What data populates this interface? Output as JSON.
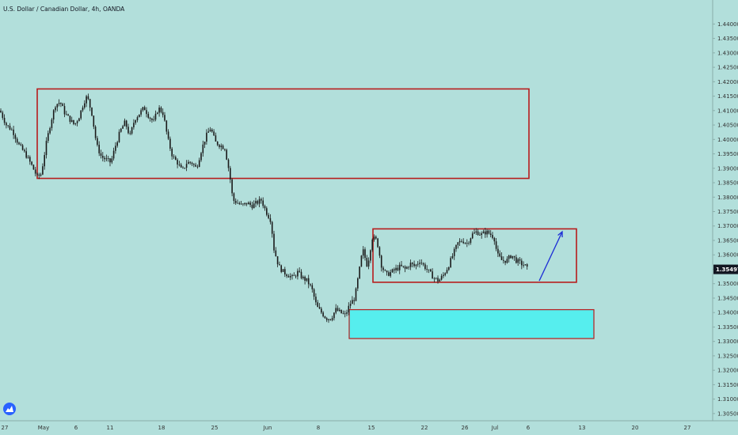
{
  "header": {
    "title": "U.S. Dollar / Canadian Dollar, 4h, OANDA"
  },
  "logo": {
    "icon": "tradingview-icon"
  },
  "colors": {
    "background": "#b2dfdb",
    "candle": "#1a1a1a",
    "box_border": "#b71c1c",
    "support_fill": "#56eeee",
    "arrow": "#1e2fd6",
    "price_tag": "#131722",
    "axis_text": "#333333"
  },
  "chart_data": {
    "type": "candlestick",
    "title": "U.S. Dollar / Canadian Dollar, 4h, OANDA",
    "ylim": [
      1.3025,
      1.4475
    ],
    "y_ticks": [
      "1.44000",
      "1.43500",
      "1.43000",
      "1.42500",
      "1.42000",
      "1.41500",
      "1.41000",
      "1.40500",
      "1.40000",
      "1.39500",
      "1.39000",
      "1.38500",
      "1.38000",
      "1.37500",
      "1.37000",
      "1.36500",
      "1.36000",
      "1.35500",
      "1.35000",
      "1.34500",
      "1.34000",
      "1.33500",
      "1.33000",
      "1.32500",
      "1.32000",
      "1.31500",
      "1.31000",
      "1.30500"
    ],
    "x_ticks": [
      "27",
      "May",
      "6",
      "11",
      "18",
      "25",
      "Jun",
      "8",
      "15",
      "22",
      "26",
      "Jul",
      "6",
      "13",
      "20",
      "27"
    ],
    "current_price": "1.35497",
    "close_path": [
      [
        0,
        1.41
      ],
      [
        8,
        1.405
      ],
      [
        16,
        1.403
      ],
      [
        24,
        1.398
      ],
      [
        32,
        1.395
      ],
      [
        40,
        1.391
      ],
      [
        47,
        1.387
      ],
      [
        52,
        1.388
      ],
      [
        58,
        1.398
      ],
      [
        64,
        1.406
      ],
      [
        70,
        1.412
      ],
      [
        76,
        1.413
      ],
      [
        82,
        1.409
      ],
      [
        88,
        1.407
      ],
      [
        94,
        1.405
      ],
      [
        100,
        1.408
      ],
      [
        106,
        1.413
      ],
      [
        110,
        1.415
      ],
      [
        116,
        1.409
      ],
      [
        122,
        1.398
      ],
      [
        128,
        1.394
      ],
      [
        134,
        1.393
      ],
      [
        140,
        1.392
      ],
      [
        146,
        1.398
      ],
      [
        152,
        1.403
      ],
      [
        158,
        1.406
      ],
      [
        164,
        1.401
      ],
      [
        170,
        1.407
      ],
      [
        176,
        1.409
      ],
      [
        182,
        1.411
      ],
      [
        188,
        1.408
      ],
      [
        194,
        1.406
      ],
      [
        200,
        1.411
      ],
      [
        206,
        1.409
      ],
      [
        212,
        1.4
      ],
      [
        218,
        1.394
      ],
      [
        224,
        1.392
      ],
      [
        230,
        1.389
      ],
      [
        236,
        1.392
      ],
      [
        242,
        1.392
      ],
      [
        248,
        1.39
      ],
      [
        254,
        1.396
      ],
      [
        260,
        1.401
      ],
      [
        266,
        1.404
      ],
      [
        272,
        1.399
      ],
      [
        278,
        1.398
      ],
      [
        284,
        1.397
      ],
      [
        290,
        1.388
      ],
      [
        294,
        1.379
      ],
      [
        300,
        1.378
      ],
      [
        306,
        1.377
      ],
      [
        312,
        1.378
      ],
      [
        318,
        1.377
      ],
      [
        324,
        1.378
      ],
      [
        330,
        1.379
      ],
      [
        336,
        1.375
      ],
      [
        342,
        1.372
      ],
      [
        346,
        1.362
      ],
      [
        352,
        1.356
      ],
      [
        358,
        1.354
      ],
      [
        364,
        1.353
      ],
      [
        370,
        1.352
      ],
      [
        376,
        1.354
      ],
      [
        382,
        1.352
      ],
      [
        388,
        1.351
      ],
      [
        394,
        1.348
      ],
      [
        400,
        1.342
      ],
      [
        406,
        1.34
      ],
      [
        412,
        1.338
      ],
      [
        418,
        1.338
      ],
      [
        424,
        1.341
      ],
      [
        430,
        1.34
      ],
      [
        436,
        1.339
      ],
      [
        442,
        1.343
      ],
      [
        448,
        1.345
      ],
      [
        454,
        1.355
      ],
      [
        458,
        1.362
      ],
      [
        464,
        1.356
      ],
      [
        470,
        1.366
      ],
      [
        476,
        1.365
      ],
      [
        482,
        1.356
      ],
      [
        488,
        1.353
      ],
      [
        494,
        1.354
      ],
      [
        500,
        1.355
      ],
      [
        506,
        1.356
      ],
      [
        512,
        1.355
      ],
      [
        518,
        1.357
      ],
      [
        524,
        1.356
      ],
      [
        530,
        1.358
      ],
      [
        536,
        1.356
      ],
      [
        542,
        1.354
      ],
      [
        548,
        1.352
      ],
      [
        554,
        1.351
      ],
      [
        560,
        1.353
      ],
      [
        566,
        1.356
      ],
      [
        572,
        1.36
      ],
      [
        578,
        1.364
      ],
      [
        584,
        1.365
      ],
      [
        590,
        1.364
      ],
      [
        596,
        1.367
      ],
      [
        602,
        1.368
      ],
      [
        608,
        1.367
      ],
      [
        614,
        1.368
      ],
      [
        620,
        1.367
      ],
      [
        624,
        1.366
      ],
      [
        628,
        1.36
      ],
      [
        634,
        1.358
      ],
      [
        640,
        1.358
      ],
      [
        646,
        1.36
      ],
      [
        652,
        1.358
      ],
      [
        658,
        1.357
      ],
      [
        664,
        1.356
      ],
      [
        666,
        1.355
      ]
    ],
    "annotations": {
      "resistance_box": {
        "x_from": 47,
        "x_to": 668,
        "y_from": 1.3865,
        "y_to": 1.4175
      },
      "range_box": {
        "x_from": 471,
        "x_to": 728,
        "y_from": 1.3505,
        "y_to": 1.369
      },
      "support_zone": {
        "x_from": 441,
        "x_to": 750,
        "y_from": 1.331,
        "y_to": 1.341
      },
      "arrow": {
        "x_from": 681,
        "y_from": 1.351,
        "x_to": 710,
        "y_to": 1.368
      }
    },
    "grid": false,
    "legend": "none"
  }
}
